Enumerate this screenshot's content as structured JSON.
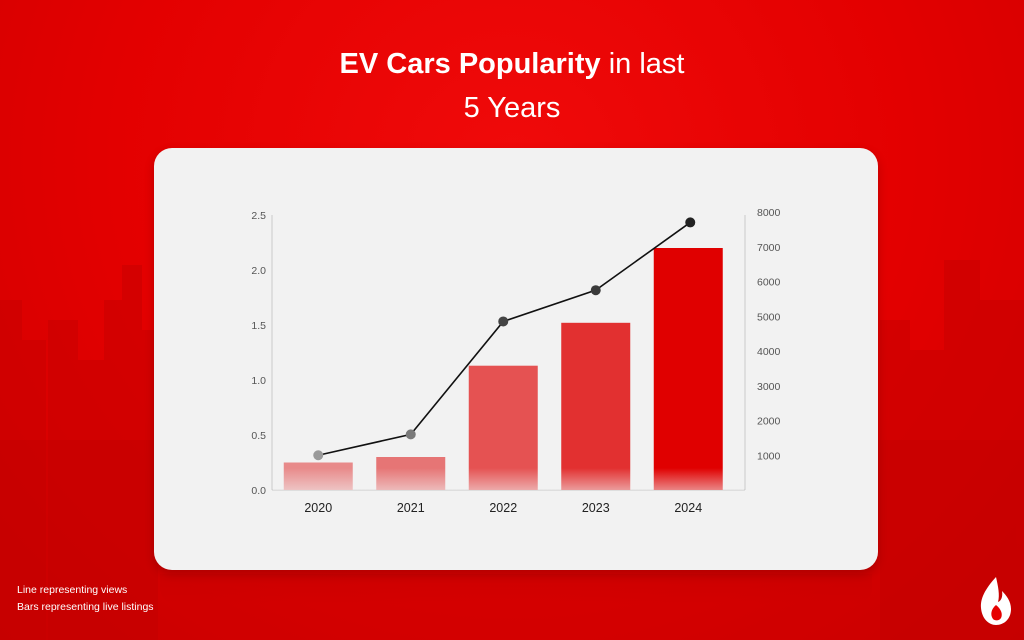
{
  "title": {
    "bold": "EV Cars Popularity",
    "rest": "in last",
    "line2": "5 Years"
  },
  "notes": {
    "line": "Line representing views",
    "bars": "Bars representing live listings"
  },
  "chart_data": {
    "type": "bar",
    "categories": [
      "2020",
      "2021",
      "2022",
      "2023",
      "2024"
    ],
    "series": [
      {
        "type": "bar",
        "axis": "left",
        "values": [
          0.25,
          0.3,
          1.13,
          1.52,
          2.2
        ],
        "colors": [
          "#e88a8a",
          "#e67575",
          "#e55252",
          "#e23030",
          "#e00000"
        ]
      },
      {
        "type": "line",
        "axis": "right",
        "values": [
          1000,
          1600,
          4850,
          5750,
          7700
        ],
        "marker_colors": [
          "#9a9a9a",
          "#7a7a7a",
          "#444444",
          "#3a3a3a",
          "#222222"
        ]
      }
    ],
    "y_left": {
      "ticks": [
        "0.0",
        "0.5",
        "1.0",
        "1.5",
        "2.0",
        "2.5"
      ],
      "ylim": [
        0,
        2.5
      ]
    },
    "y_right": {
      "ticks": [
        "1000",
        "2000",
        "3000",
        "4000",
        "5000",
        "6000",
        "7000",
        "8000"
      ],
      "ylim": [
        0,
        8000
      ]
    }
  }
}
